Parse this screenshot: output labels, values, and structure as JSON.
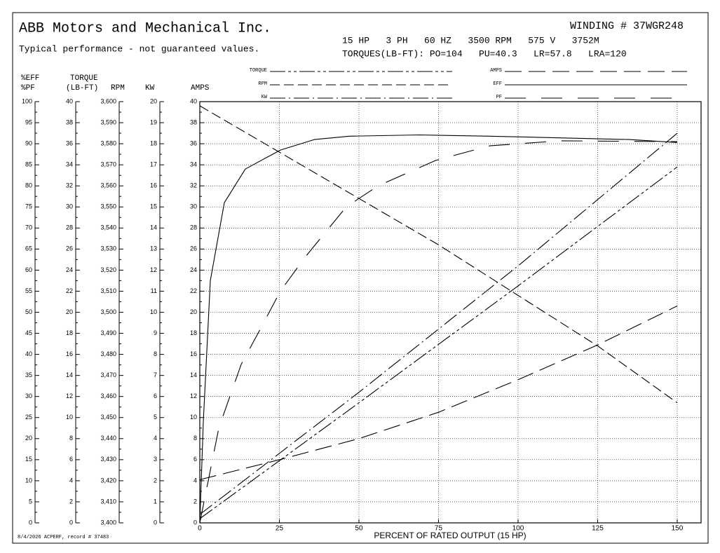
{
  "chart_data": {
    "type": "line",
    "title": "ABB Motors and Mechanical Inc.",
    "subtitle": "Typical performance - not guaranteed values.",
    "winding": "WINDING # 37WGR248",
    "specs": "15 HP   3 PH   60 HZ   3500 RPM   575 V   3752M",
    "torques": "TORQUES(LB-FT): PO=104   PU=40.3   LR=57.8   LRA=120",
    "footer": "8/4/2026 ACPERF, record # 37483",
    "x_label": "PERCENT OF RATED OUTPUT (15 HP)",
    "xlim": [
      0,
      157.5
    ],
    "xticks": [
      0,
      25,
      50,
      75,
      100,
      125,
      150
    ],
    "grid": true,
    "y_axes": [
      {
        "labels": [
          "%EFF",
          "%PF"
        ],
        "lim": [
          0,
          100
        ],
        "ticks": [
          0,
          5,
          10,
          15,
          20,
          25,
          30,
          35,
          40,
          45,
          50,
          55,
          60,
          65,
          70,
          75,
          80,
          85,
          90,
          95,
          100
        ]
      },
      {
        "labels": [
          "TORQUE",
          "(LB-FT)"
        ],
        "lim": [
          0,
          40
        ],
        "ticks": [
          0,
          2,
          4,
          6,
          8,
          10,
          12,
          14,
          16,
          18,
          20,
          22,
          24,
          26,
          28,
          30,
          32,
          34,
          36,
          38,
          40
        ]
      },
      {
        "labels": [
          "RPM"
        ],
        "lim": [
          3400,
          3600
        ],
        "ticks": [
          {
            "value": 3400,
            "label": "3,400"
          },
          {
            "value": 3410,
            "label": "3,410"
          },
          {
            "value": 3420,
            "label": "3,420"
          },
          {
            "value": 3430,
            "label": "3,430"
          },
          {
            "value": 3440,
            "label": "3,440"
          },
          {
            "value": 3450,
            "label": "3,450"
          },
          {
            "value": 3460,
            "label": "3,460"
          },
          {
            "value": 3470,
            "label": "3,470"
          },
          {
            "value": 3480,
            "label": "3,480"
          },
          {
            "value": 3490,
            "label": "3,490"
          },
          {
            "value": 3500,
            "label": "3,500"
          },
          {
            "value": 3510,
            "label": "3,510"
          },
          {
            "value": 3520,
            "label": "3,520"
          },
          {
            "value": 3530,
            "label": "3,530"
          },
          {
            "value": 3540,
            "label": "3,540"
          },
          {
            "value": 3550,
            "label": "3,550"
          },
          {
            "value": 3560,
            "label": "3,560"
          },
          {
            "value": 3570,
            "label": "3,570"
          },
          {
            "value": 3580,
            "label": "3,580"
          },
          {
            "value": 3590,
            "label": "3,590"
          },
          {
            "value": 3600,
            "label": "3,600"
          }
        ]
      },
      {
        "labels": [
          "KW"
        ],
        "lim": [
          0,
          20
        ],
        "ticks": [
          0,
          1,
          2,
          3,
          4,
          5,
          6,
          7,
          8,
          9,
          10,
          11,
          12,
          13,
          14,
          15,
          16,
          17,
          18,
          19,
          20
        ]
      },
      {
        "labels": [
          "AMPS"
        ],
        "lim": [
          0,
          40
        ],
        "ticks": [
          0,
          2,
          4,
          6,
          8,
          10,
          12,
          14,
          16,
          18,
          20,
          22,
          24,
          26,
          28,
          30,
          32,
          34,
          36,
          38,
          40
        ]
      }
    ],
    "series": [
      {
        "name": "TORQUE",
        "color": "#000000",
        "axis": 1,
        "x": [
          0,
          50,
          100,
          150
        ],
        "values": [
          0.4,
          11.4,
          22.5,
          33.8
        ]
      },
      {
        "name": "RPM",
        "color": "#000000",
        "axis": 2,
        "x": [
          0,
          25,
          50,
          75,
          100,
          125,
          150
        ],
        "values": [
          3598,
          3576,
          3554,
          3532,
          3508,
          3484,
          3457
        ]
      },
      {
        "name": "KW",
        "color": "#000000",
        "axis": 3,
        "x": [
          0,
          50,
          100,
          150
        ],
        "values": [
          0.4,
          6.2,
          12.2,
          18.5
        ]
      },
      {
        "name": "AMPS",
        "color": "#000000",
        "axis": 4,
        "x": [
          0,
          25,
          50,
          75,
          100,
          125,
          150
        ],
        "values": [
          4.1,
          6.0,
          8.0,
          10.5,
          13.6,
          16.9,
          20.6
        ]
      },
      {
        "name": "EFF",
        "color": "#000000",
        "axis": 0,
        "x": [
          0,
          1.1,
          3.3,
          7.7,
          14.3,
          25.3,
          36,
          47,
          69,
          91,
          113,
          135,
          150
        ],
        "values": [
          0,
          24,
          57.5,
          76,
          84,
          88.5,
          91,
          91.8,
          92.1,
          91.8,
          91.4,
          91,
          90.3
        ]
      },
      {
        "name": "PF",
        "color": "#000000",
        "axis": 0,
        "x": [
          0,
          6,
          13,
          19,
          25.3,
          33,
          46,
          56,
          74,
          91,
          113,
          150
        ],
        "values": [
          0,
          22.6,
          37.6,
          46,
          55,
          63,
          75,
          80,
          86,
          89.5,
          90.7,
          90.5
        ]
      }
    ]
  }
}
